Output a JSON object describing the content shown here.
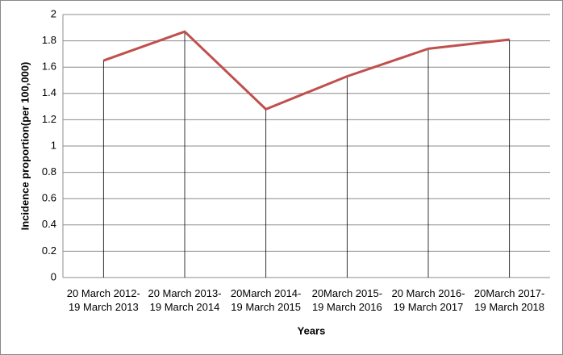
{
  "chart_data": {
    "type": "line",
    "x_label": "Years",
    "y_label": "Incidence proportion(per 100,000)",
    "categories": [
      "20 March 2012-\n19 March 2013",
      "20 March 2013-\n19 March 2014",
      "20March 2014-\n19 March 2015",
      "20March 2015-\n19 March 2016",
      "20 March 2016-\n19 March 2017",
      "20March 2017-\n19 March 2018"
    ],
    "values": [
      1.65,
      1.87,
      1.28,
      1.53,
      1.74,
      1.81
    ],
    "color": "#c0504d",
    "drop_lines": true,
    "ylim": [
      0,
      2
    ],
    "yticks": [
      0,
      0.2,
      0.4,
      0.6,
      0.8,
      1,
      1.2,
      1.4,
      1.6,
      1.8,
      2
    ],
    "grid": true
  }
}
